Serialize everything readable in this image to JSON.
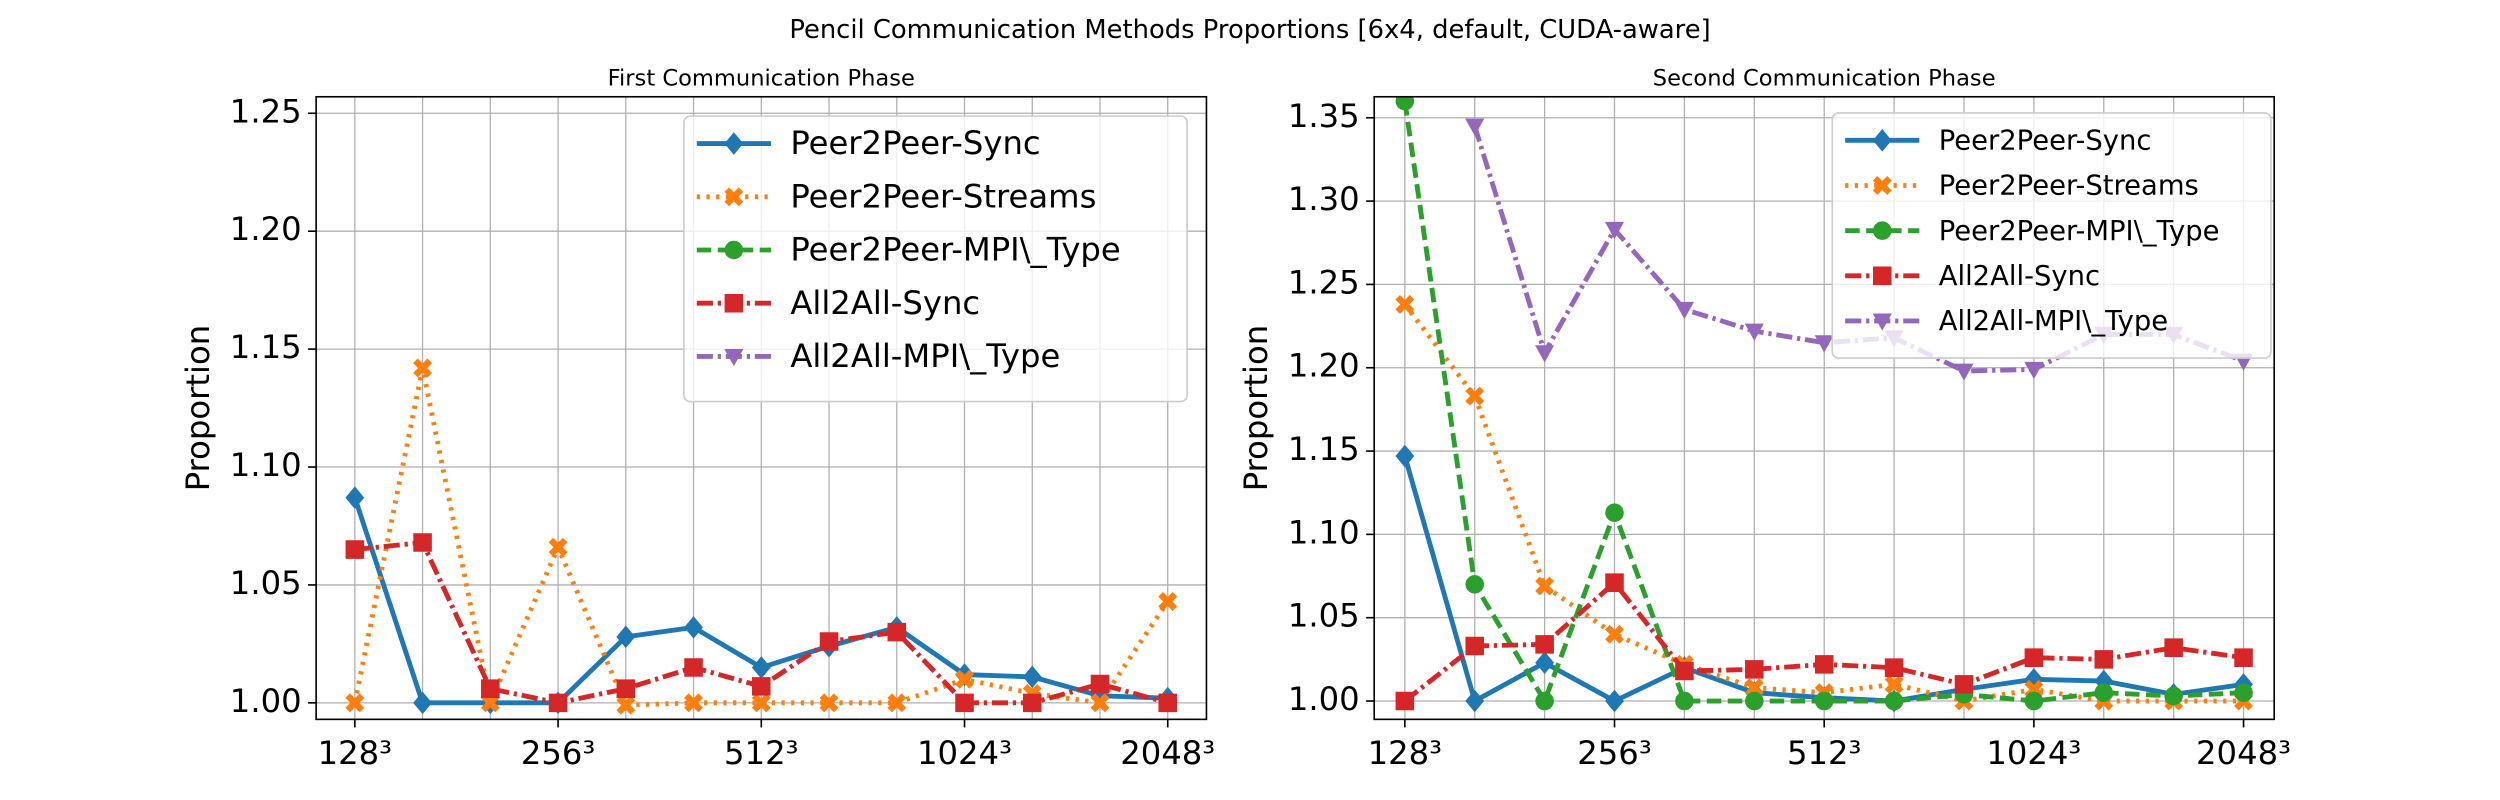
{
  "title": "Pencil Communication Methods Proportions [6x4, default, CUDA-aware]",
  "chart_data": [
    {
      "type": "line",
      "title": "First Communication Phase",
      "y_label": "Proportion",
      "categories": [
        "128³",
        null,
        null,
        "256³",
        null,
        null,
        "512³",
        null,
        null,
        "1024³",
        null,
        null,
        "2048³"
      ],
      "ylim": [
        0.993,
        1.257
      ],
      "yticks": [
        {
          "value": 1.0,
          "label": "1.00"
        },
        {
          "value": 1.05,
          "label": "1.05"
        },
        {
          "value": 1.1,
          "label": "1.10"
        },
        {
          "value": 1.15,
          "label": "1.15"
        },
        {
          "value": 1.2,
          "label": "1.20"
        },
        {
          "value": 1.25,
          "label": "1.25"
        }
      ],
      "grid": true,
      "legend": "upper right",
      "series": [
        {
          "name": "Peer2Peer-Sync",
          "color": "#1f77b4",
          "values": [
            1.087,
            1.0,
            1.0,
            1.0,
            1.028,
            1.032,
            1.015,
            1.024,
            1.032,
            1.012,
            1.011,
            1.003,
            1.002
          ]
        },
        {
          "name": "Peer2Peer-Streams",
          "color": "#ff7f0e",
          "values": [
            1.0,
            1.142,
            1.0,
            1.066,
            0.999,
            1.0,
            1.0,
            1.0,
            1.0,
            1.01,
            1.004,
            1.0,
            1.043
          ]
        },
        {
          "name": "Peer2Peer-MPI\\_Type",
          "color": "#2ca02c",
          "values": [
            null,
            null,
            null,
            null,
            null,
            null,
            null,
            null,
            null,
            null,
            null,
            null,
            null
          ]
        },
        {
          "name": "All2All-Sync",
          "color": "#d62728",
          "values": [
            1.065,
            1.068,
            1.006,
            1.0,
            1.006,
            1.015,
            1.007,
            1.026,
            1.03,
            1.0,
            1.0,
            1.008,
            1.0
          ]
        },
        {
          "name": "All2All-MPI\\_Type",
          "color": "#9467bd",
          "values": [
            null,
            null,
            null,
            null,
            null,
            null,
            null,
            null,
            null,
            null,
            null,
            null,
            null
          ]
        }
      ]
    },
    {
      "type": "line",
      "title": "Second Communication Phase",
      "y_label": "Proportion",
      "categories": [
        "128³",
        null,
        null,
        "256³",
        null,
        null,
        "512³",
        null,
        null,
        "1024³",
        null,
        null,
        "2048³"
      ],
      "ylim": [
        0.989,
        1.3626
      ],
      "yticks": [
        {
          "value": 1.0,
          "label": "1.00"
        },
        {
          "value": 1.05,
          "label": "1.05"
        },
        {
          "value": 1.1,
          "label": "1.10"
        },
        {
          "value": 1.15,
          "label": "1.15"
        },
        {
          "value": 1.2,
          "label": "1.20"
        },
        {
          "value": 1.25,
          "label": "1.25"
        },
        {
          "value": 1.3,
          "label": "1.30"
        },
        {
          "value": 1.35,
          "label": "1.35"
        }
      ],
      "grid": true,
      "legend": "upper right",
      "series": [
        {
          "name": "Peer2Peer-Sync",
          "color": "#1f77b4",
          "values": [
            1.147,
            1.0,
            1.023,
            1.0,
            1.02,
            1.005,
            1.002,
            1.0,
            1.007,
            1.013,
            1.012,
            1.004,
            1.01
          ]
        },
        {
          "name": "Peer2Peer-Streams",
          "color": "#ff7f0e",
          "values": [
            1.238,
            1.183,
            1.069,
            1.04,
            1.022,
            1.008,
            1.005,
            1.01,
            1.0,
            1.007,
            1.0,
            1.0,
            1.0
          ]
        },
        {
          "name": "Peer2Peer-MPI\\_Type",
          "color": "#2ca02c",
          "values": [
            1.36,
            1.07,
            1.0,
            1.113,
            1.0,
            1.0,
            1.0,
            1.0,
            1.004,
            1.0,
            1.005,
            1.003,
            1.005
          ]
        },
        {
          "name": "All2All-Sync",
          "color": "#d62728",
          "values": [
            1.0,
            1.033,
            1.034,
            1.071,
            1.018,
            1.019,
            1.022,
            1.02,
            1.01,
            1.026,
            1.025,
            1.032,
            1.026
          ]
        },
        {
          "name": "All2All-MPI\\_Type",
          "color": "#9467bd",
          "values": [
            null,
            1.345,
            1.209,
            1.283,
            1.235,
            1.222,
            1.215,
            1.218,
            1.198,
            1.199,
            1.22,
            1.22,
            1.204
          ]
        }
      ]
    }
  ]
}
